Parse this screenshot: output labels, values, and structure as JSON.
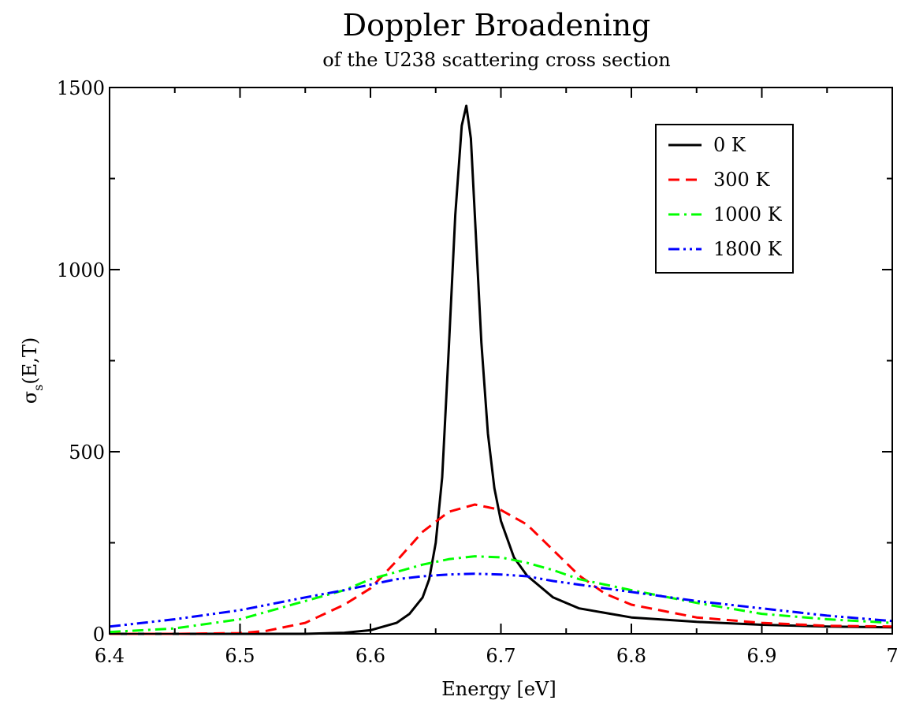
{
  "chart_data": {
    "type": "line",
    "title": "Doppler Broadening",
    "subtitle": "of the U238 scattering cross section",
    "xlabel": "Energy [eV]",
    "ylabel_main": "σ",
    "ylabel_sub": "s",
    "ylabel_tail": "(E,T)",
    "xlim": [
      6.4,
      7.0
    ],
    "ylim": [
      0,
      1500
    ],
    "x_ticks": [
      6.4,
      6.5,
      6.6,
      6.7,
      6.8,
      6.9,
      7.0
    ],
    "x_tick_labels": [
      "6.4",
      "6.5",
      "6.6",
      "6.7",
      "6.8",
      "6.9",
      "7"
    ],
    "y_ticks": [
      0,
      500,
      1000,
      1500
    ],
    "y_tick_labels": [
      "0",
      "500",
      "1000",
      "1500"
    ],
    "grid": false,
    "legend_position": "top-right",
    "series": [
      {
        "name": "0 K",
        "color": "#000000",
        "dash": "solid",
        "x": [
          6.4,
          6.5,
          6.55,
          6.58,
          6.6,
          6.62,
          6.63,
          6.64,
          6.645,
          6.65,
          6.655,
          6.66,
          6.665,
          6.67,
          6.6735,
          6.677,
          6.68,
          6.685,
          6.69,
          6.695,
          6.7,
          6.71,
          6.72,
          6.74,
          6.76,
          6.8,
          6.85,
          6.9,
          6.95,
          7.0
        ],
        "y": [
          0,
          0,
          0,
          3,
          10,
          30,
          55,
          100,
          150,
          250,
          430,
          780,
          1150,
          1395,
          1450,
          1360,
          1150,
          800,
          550,
          400,
          310,
          210,
          160,
          100,
          70,
          45,
          33,
          25,
          20,
          18
        ]
      },
      {
        "name": "300 K",
        "color": "#ff0000",
        "dash": "dashed",
        "x": [
          6.4,
          6.45,
          6.5,
          6.52,
          6.55,
          6.58,
          6.6,
          6.62,
          6.64,
          6.66,
          6.68,
          6.7,
          6.72,
          6.74,
          6.76,
          6.78,
          6.8,
          6.85,
          6.9,
          6.95,
          7.0
        ],
        "y": [
          0,
          0,
          2,
          8,
          30,
          80,
          125,
          200,
          280,
          335,
          355,
          340,
          300,
          230,
          160,
          110,
          80,
          45,
          30,
          22,
          20
        ]
      },
      {
        "name": "1000 K",
        "color": "#00ff00",
        "dash": "dashdot",
        "x": [
          6.4,
          6.45,
          6.5,
          6.55,
          6.58,
          6.6,
          6.62,
          6.64,
          6.66,
          6.68,
          6.7,
          6.72,
          6.74,
          6.76,
          6.78,
          6.8,
          6.85,
          6.9,
          6.95,
          7.0
        ],
        "y": [
          5,
          15,
          40,
          90,
          120,
          150,
          170,
          190,
          205,
          213,
          210,
          195,
          175,
          150,
          135,
          120,
          85,
          55,
          40,
          30
        ]
      },
      {
        "name": "1800 K",
        "color": "#0000ff",
        "dash": "dashdotdot",
        "x": [
          6.4,
          6.45,
          6.5,
          6.55,
          6.58,
          6.6,
          6.62,
          6.64,
          6.66,
          6.68,
          6.7,
          6.72,
          6.74,
          6.76,
          6.78,
          6.8,
          6.85,
          6.9,
          6.95,
          7.0
        ],
        "y": [
          20,
          40,
          65,
          100,
          120,
          135,
          150,
          158,
          163,
          165,
          163,
          158,
          145,
          135,
          125,
          115,
          90,
          70,
          50,
          35
        ]
      }
    ]
  }
}
